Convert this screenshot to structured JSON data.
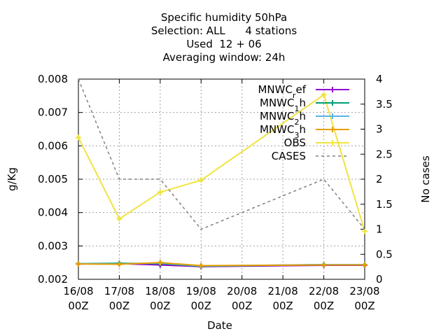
{
  "chart_data": {
    "type": "line",
    "title_lines": [
      "Specific humidity 50hPa",
      "Selection: ALL      4 stations",
      "Used  12 + 06",
      "Averaging window: 24h"
    ],
    "xlabel": "Date",
    "ylabel": "g/Kg",
    "y2label": "No cases",
    "x_ticks": [
      [
        "16/08",
        "00Z"
      ],
      [
        "17/08",
        "00Z"
      ],
      [
        "18/08",
        "00Z"
      ],
      [
        "19/08",
        "00Z"
      ],
      [
        "20/08",
        "00Z"
      ],
      [
        "21/08",
        "00Z"
      ],
      [
        "22/08",
        "00Z"
      ],
      [
        "23/08",
        "00Z"
      ]
    ],
    "x": [
      0,
      1,
      2,
      3,
      6,
      7
    ],
    "ylim": [
      0.002,
      0.008
    ],
    "y_ticks": [
      "0.002",
      "0.003",
      "0.004",
      "0.005",
      "0.006",
      "0.007",
      "0.008"
    ],
    "y2lim": [
      0,
      4
    ],
    "y2_ticks": [
      "0",
      "0.5",
      "1",
      "1.5",
      "2",
      "2.5",
      "3",
      "3.5",
      "4"
    ],
    "grid": true,
    "legend_position": "top-right",
    "series": [
      {
        "name": "MNWC_ref",
        "label_main": "MNWC",
        "label_sub": "r",
        "label_rest": "ef",
        "color": "#9400d3",
        "marker": "plus",
        "axis": "y",
        "values": [
          0.00246,
          0.00247,
          0.00243,
          0.00238,
          0.00242,
          0.00242
        ]
      },
      {
        "name": "MNWC_1h",
        "label_main": "MNWC",
        "label_sub": "1",
        "label_rest": "h",
        "color": "#009e73",
        "marker": "plus",
        "axis": "y",
        "values": [
          0.00247,
          0.00248,
          0.00247,
          0.00239,
          0.00244,
          0.00244
        ]
      },
      {
        "name": "MNWC_2h",
        "label_main": "MNWC",
        "label_sub": "2",
        "label_rest": "h",
        "color": "#56b4e9",
        "marker": "plus",
        "axis": "y",
        "values": [
          0.00247,
          0.00246,
          0.00249,
          0.0024,
          0.00244,
          0.00244
        ]
      },
      {
        "name": "MNWC_3h",
        "label_main": "MNWC",
        "label_sub": "3",
        "label_rest": "h",
        "color": "#e69f00",
        "marker": "plus",
        "axis": "y",
        "values": [
          0.00246,
          0.00245,
          0.0025,
          0.00241,
          0.00243,
          0.00243
        ]
      },
      {
        "name": "OBS",
        "label_main": "OBS",
        "label_sub": "",
        "label_rest": "",
        "color": "#f0e442",
        "marker": "plus",
        "axis": "y",
        "values": [
          0.00625,
          0.00381,
          0.00461,
          0.00497,
          0.00753,
          0.00344
        ]
      },
      {
        "name": "CASES",
        "label_main": "CASES",
        "label_sub": "",
        "label_rest": "",
        "color": "#808080",
        "marker": "none",
        "dashed": true,
        "axis": "y2",
        "values": [
          4,
          2,
          2,
          1,
          2,
          1
        ]
      }
    ]
  }
}
